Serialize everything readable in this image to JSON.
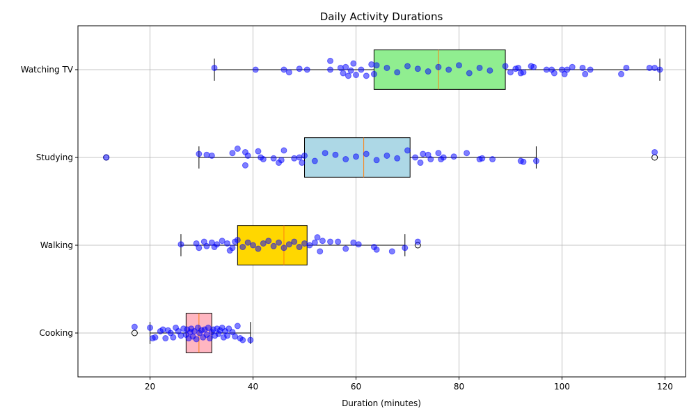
{
  "chart_data": {
    "type": "boxplot",
    "orientation": "horizontal",
    "title": "Daily Activity Durations",
    "xlabel": "Duration (minutes)",
    "ylabel": "",
    "xlim": [
      6,
      124
    ],
    "x_ticks": [
      20,
      40,
      60,
      80,
      100,
      120
    ],
    "grid": true,
    "categories": [
      "Cooking",
      "Walking",
      "Studying",
      "Watching TV"
    ],
    "boxes": [
      {
        "category": "Cooking",
        "whisker_low": 20,
        "q1": 27,
        "median": 29.5,
        "q3": 32,
        "whisker_high": 39.5,
        "fliers": [
          17
        ],
        "color": "#ffb6c1"
      },
      {
        "category": "Walking",
        "whisker_low": 26,
        "q1": 37,
        "median": 46,
        "q3": 50.5,
        "whisker_high": 69.5,
        "fliers": [
          72
        ],
        "color": "#ffd700"
      },
      {
        "category": "Studying",
        "whisker_low": 29.5,
        "q1": 50,
        "median": 61.5,
        "q3": 70.5,
        "whisker_high": 95,
        "fliers": [
          11.5,
          118
        ],
        "color": "#add8e6"
      },
      {
        "category": "Watching TV",
        "whisker_low": 32.5,
        "q1": 63.5,
        "median": 76,
        "q3": 89,
        "whisker_high": 119,
        "fliers": [],
        "color": "#90ee90"
      }
    ],
    "points": [
      {
        "category": "Cooking",
        "x": [
          17,
          20,
          20.5,
          21,
          22,
          22.5,
          23,
          23.5,
          24,
          24.5,
          25,
          25.5,
          26,
          26.5,
          27,
          27.2,
          27.5,
          27.8,
          28,
          28.3,
          28.6,
          29,
          29.3,
          29.6,
          30,
          30.3,
          30.6,
          31,
          31.3,
          31.6,
          32,
          32.3,
          32.6,
          33,
          33.3,
          33.6,
          34,
          34.3,
          34.6,
          35,
          35.3,
          36,
          36.5,
          37,
          37.5,
          38,
          39.5
        ],
        "jitter": [
          0.07,
          0.06,
          -0.06,
          -0.05,
          0.02,
          0.04,
          -0.06,
          0.03,
          0.0,
          -0.05,
          0.06,
          0.02,
          -0.03,
          0.05,
          -0.02,
          0.04,
          -0.06,
          0.01,
          0.05,
          -0.04,
          0.02,
          -0.07,
          0.06,
          0.0,
          0.03,
          -0.05,
          0.04,
          -0.02,
          0.06,
          -0.06,
          0.01,
          0.04,
          -0.03,
          0.05,
          -0.01,
          0.03,
          0.06,
          -0.05,
          0.02,
          -0.03,
          0.05,
          0.01,
          -0.04,
          0.08,
          -0.06,
          -0.08,
          -0.08
        ]
      },
      {
        "category": "Walking",
        "x": [
          26,
          29,
          29.5,
          30.5,
          31,
          32,
          32.5,
          33,
          34,
          35,
          35.5,
          36,
          36.5,
          37,
          38,
          39,
          40,
          41,
          42,
          43,
          44,
          45,
          46,
          47,
          48,
          49,
          50,
          51,
          52,
          52.5,
          53,
          53.5,
          55,
          56.5,
          58,
          59.5,
          60.5,
          63.5,
          64,
          67,
          69.5,
          72
        ],
        "jitter": [
          0.01,
          0.02,
          -0.03,
          0.04,
          -0.01,
          0.03,
          -0.02,
          0.01,
          0.05,
          0.02,
          -0.06,
          -0.03,
          0.04,
          0.06,
          -0.02,
          0.03,
          0.0,
          -0.04,
          0.02,
          0.05,
          -0.01,
          0.03,
          -0.03,
          0.01,
          0.04,
          -0.02,
          0.02,
          0.0,
          0.03,
          0.09,
          -0.07,
          0.05,
          0.04,
          0.04,
          -0.04,
          0.03,
          0.01,
          -0.02,
          -0.05,
          -0.07,
          -0.03,
          0.04
        ]
      },
      {
        "category": "Studying",
        "x": [
          11.5,
          29.5,
          31,
          32,
          36,
          37,
          38.5,
          38.5,
          39,
          41,
          41.5,
          42,
          44,
          45,
          45.5,
          46,
          48,
          49,
          49.5,
          50,
          52,
          54,
          56,
          58,
          60,
          62,
          64,
          66,
          68,
          70,
          71.5,
          72.5,
          73,
          74,
          74.5,
          76,
          76.5,
          77,
          79,
          81.5,
          84,
          84.5,
          86.5,
          92,
          92.5,
          95,
          118
        ],
        "jitter": [
          0.0,
          0.04,
          0.03,
          0.02,
          0.05,
          0.1,
          0.06,
          -0.09,
          0.02,
          0.07,
          0.0,
          -0.02,
          -0.01,
          -0.06,
          -0.03,
          0.08,
          -0.01,
          0.0,
          -0.06,
          0.02,
          -0.04,
          0.05,
          0.03,
          -0.02,
          0.01,
          0.04,
          -0.03,
          0.02,
          -0.01,
          0.08,
          0.0,
          -0.06,
          0.04,
          0.03,
          -0.02,
          0.05,
          -0.02,
          0.0,
          0.01,
          0.05,
          -0.02,
          -0.01,
          -0.02,
          -0.04,
          -0.05,
          -0.04,
          0.06
        ]
      },
      {
        "category": "Watching TV",
        "x": [
          32.5,
          40.5,
          46,
          47,
          49,
          50.5,
          55,
          55,
          57,
          57.5,
          58,
          58.5,
          59,
          59.5,
          60,
          61,
          62,
          63,
          63.5,
          64,
          66,
          68,
          70,
          72,
          74,
          76,
          78,
          80,
          82,
          84,
          86,
          89,
          90,
          91,
          91.5,
          92,
          92.5,
          94,
          94.5,
          97,
          98,
          98.5,
          100,
          100.5,
          101,
          102,
          104,
          104.5,
          105.5,
          111.5,
          112.5,
          117,
          118,
          119
        ],
        "jitter": [
          0.02,
          0.0,
          0.0,
          -0.03,
          0.01,
          0.0,
          0.1,
          0.0,
          0.02,
          -0.04,
          0.03,
          -0.07,
          -0.01,
          0.07,
          -0.06,
          0.0,
          -0.07,
          0.06,
          -0.05,
          0.05,
          0.02,
          -0.03,
          0.04,
          0.01,
          -0.02,
          0.03,
          0.0,
          0.05,
          -0.04,
          0.02,
          -0.01,
          0.04,
          -0.03,
          0.01,
          0.02,
          -0.04,
          -0.03,
          0.04,
          0.03,
          0.0,
          0.0,
          -0.04,
          0.0,
          -0.05,
          0.0,
          0.03,
          0.02,
          -0.05,
          0.0,
          -0.05,
          0.02,
          0.02,
          0.02,
          0.0
        ]
      }
    ],
    "colors": {
      "points": "#0000ff",
      "median": "#ff7f0e",
      "grid": "#b0b0b0"
    }
  }
}
